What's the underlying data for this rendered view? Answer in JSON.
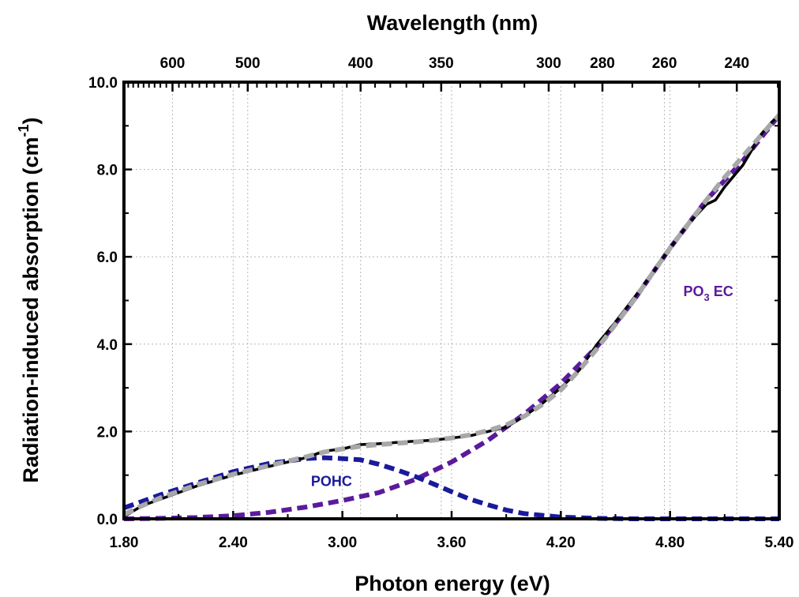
{
  "chart_data": {
    "type": "line",
    "title": "",
    "xlabel": "Photon energy (eV)",
    "top_xlabel": "Wavelength (nm)",
    "ylabel": "Radiation-induced absorption (cm",
    "ylabel_sup": "-1",
    "ylabel_close": ")",
    "xlim": [
      1.8,
      5.4
    ],
    "ylim": [
      0,
      10
    ],
    "grid": true,
    "x_ticks": [
      1.8,
      2.4,
      3.0,
      3.6,
      4.2,
      4.8,
      5.4
    ],
    "x_tick_labels": [
      "1.80",
      "2.40",
      "3.00",
      "3.60",
      "4.20",
      "4.80",
      "5.40"
    ],
    "y_ticks": [
      0,
      2,
      4,
      6,
      8,
      10
    ],
    "y_tick_labels": [
      "0.0",
      "2.0",
      "4.0",
      "6.0",
      "8.0",
      "10.0"
    ],
    "top_ticks_nm": [
      600,
      500,
      400,
      350,
      300,
      280,
      260,
      240
    ],
    "top_tick_labels": [
      "600",
      "500",
      "400",
      "350",
      "300",
      "280",
      "260",
      "240"
    ],
    "annotations": [
      {
        "text_main": "POHC",
        "text_sub": "",
        "text_tail": "",
        "x": 2.94,
        "y": 0.75,
        "color": "#1a1a9c"
      },
      {
        "text_main": "PO",
        "text_sub": "3",
        "text_tail": " EC",
        "x": 5.01,
        "y": 5.1,
        "color": "#5b1a9c"
      }
    ],
    "series": [
      {
        "style": "solid",
        "color": "#000000",
        "x": [
          1.8,
          1.9,
          2.0,
          2.2,
          2.4,
          2.6,
          2.8,
          2.9,
          3.0,
          3.1,
          3.2,
          3.3,
          3.4,
          3.5,
          3.6,
          3.7,
          3.8,
          3.9,
          4.0,
          4.1,
          4.2,
          4.3,
          4.4,
          4.5,
          4.6,
          4.7,
          4.8,
          4.9,
          5.0,
          5.05,
          5.1,
          5.15,
          5.2,
          5.25,
          5.3,
          5.35,
          5.4
        ],
        "y": [
          0.05,
          0.3,
          0.45,
          0.75,
          1.0,
          1.2,
          1.4,
          1.55,
          1.6,
          1.7,
          1.72,
          1.75,
          1.78,
          1.8,
          1.85,
          1.9,
          2.0,
          2.1,
          2.35,
          2.65,
          3.0,
          3.4,
          4.0,
          4.5,
          5.05,
          5.6,
          6.2,
          6.75,
          7.2,
          7.3,
          7.6,
          7.85,
          8.1,
          8.45,
          8.8,
          9.05,
          9.25
        ]
      },
      {
        "style": "dashed",
        "color": "#a8a8a8",
        "x": [
          1.8,
          1.9,
          2.0,
          2.2,
          2.4,
          2.6,
          2.8,
          2.9,
          3.0,
          3.1,
          3.2,
          3.3,
          3.4,
          3.5,
          3.6,
          3.7,
          3.8,
          3.9,
          4.0,
          4.1,
          4.2,
          4.3,
          4.4,
          4.5,
          4.6,
          4.7,
          4.8,
          4.9,
          5.0,
          5.1,
          5.2,
          5.3,
          5.4
        ],
        "y": [
          0.1,
          0.3,
          0.48,
          0.78,
          1.02,
          1.22,
          1.42,
          1.53,
          1.6,
          1.66,
          1.7,
          1.73,
          1.76,
          1.8,
          1.85,
          1.92,
          2.02,
          2.15,
          2.35,
          2.62,
          2.95,
          3.4,
          3.9,
          4.45,
          5.0,
          5.6,
          6.2,
          6.75,
          7.3,
          7.82,
          8.3,
          8.78,
          9.25
        ]
      },
      {
        "style": "dashed",
        "color": "#1a1a9c",
        "x": [
          1.8,
          1.9,
          2.0,
          2.2,
          2.4,
          2.6,
          2.8,
          2.9,
          3.0,
          3.1,
          3.2,
          3.3,
          3.4,
          3.5,
          3.6,
          3.7,
          3.8,
          3.9,
          4.0,
          4.2,
          4.4,
          4.6,
          4.8,
          5.0,
          5.4
        ],
        "y": [
          0.25,
          0.4,
          0.55,
          0.82,
          1.08,
          1.27,
          1.38,
          1.4,
          1.38,
          1.35,
          1.25,
          1.12,
          0.97,
          0.8,
          0.62,
          0.45,
          0.32,
          0.2,
          0.12,
          0.04,
          0.01,
          0.0,
          0.0,
          0.0,
          0.0
        ]
      },
      {
        "style": "dashed",
        "color": "#5b1a9c",
        "x": [
          1.8,
          2.0,
          2.2,
          2.4,
          2.6,
          2.8,
          3.0,
          3.2,
          3.4,
          3.6,
          3.8,
          4.0,
          4.2,
          4.4,
          4.6,
          4.8,
          5.0,
          5.2,
          5.4
        ],
        "y": [
          0.0,
          0.01,
          0.03,
          0.07,
          0.15,
          0.27,
          0.42,
          0.6,
          0.9,
          1.3,
          1.8,
          2.4,
          3.1,
          3.95,
          5.0,
          6.2,
          7.3,
          8.2,
          9.25
        ]
      }
    ]
  }
}
